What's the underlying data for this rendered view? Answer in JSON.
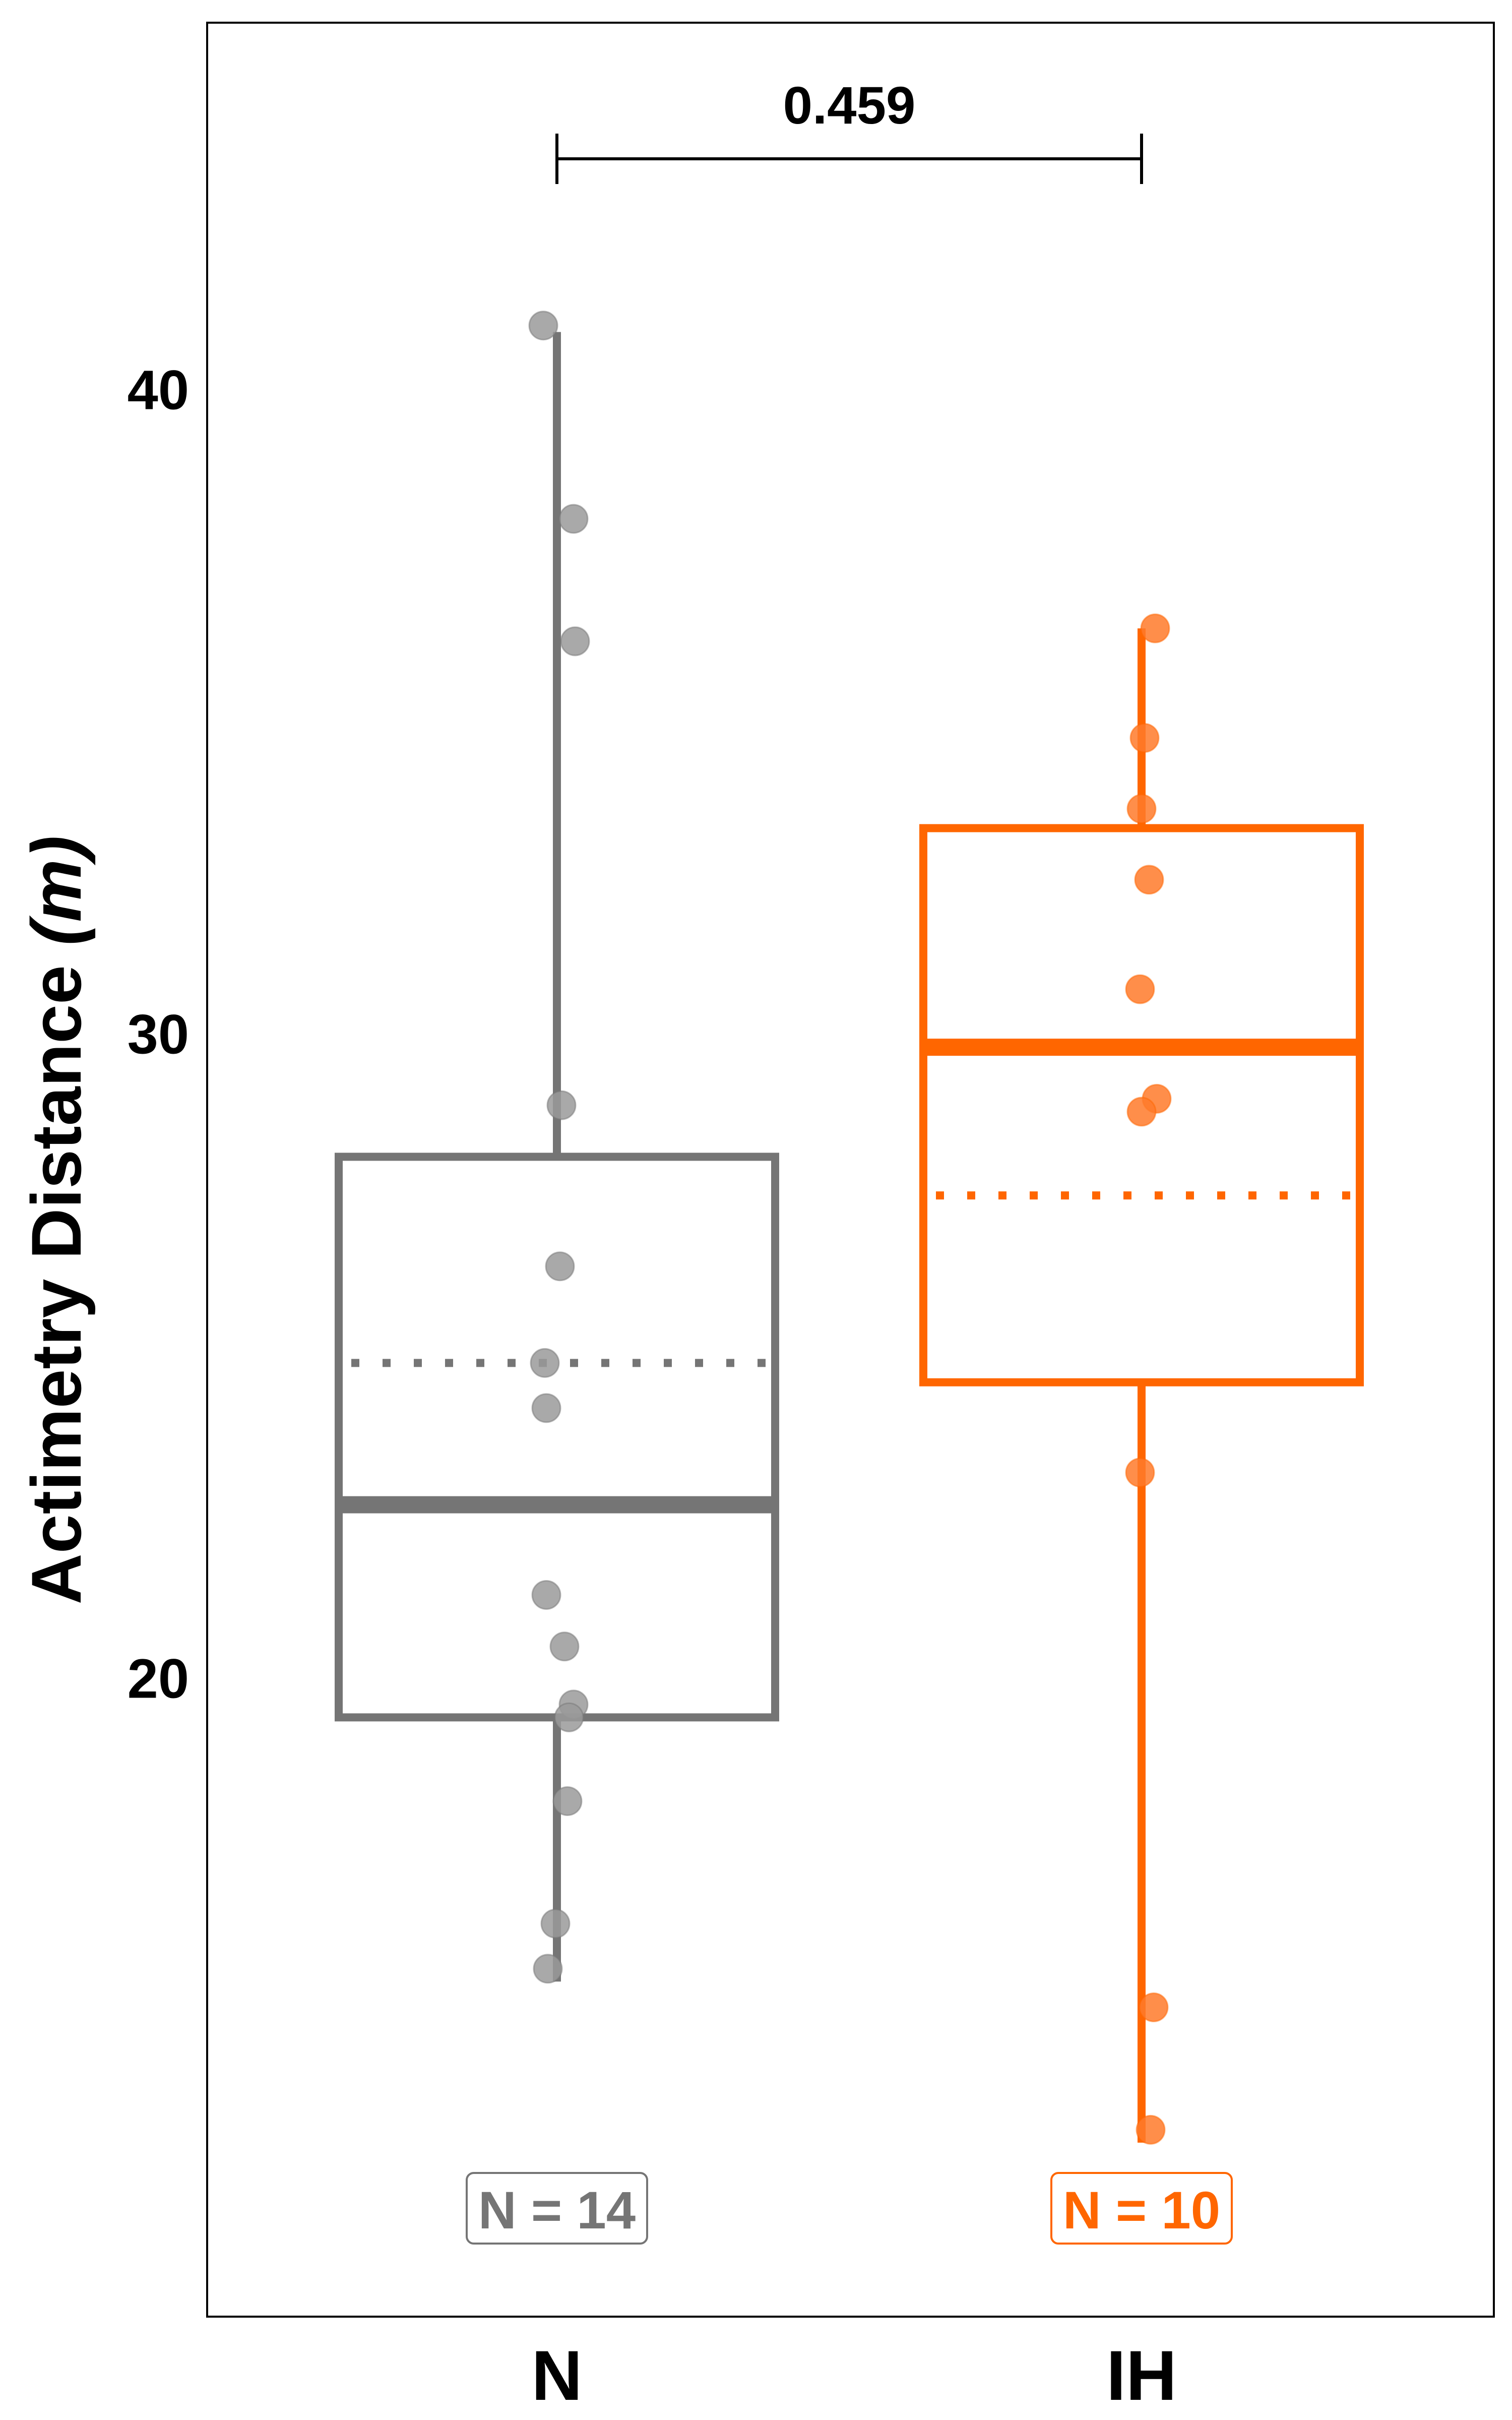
{
  "chart_data": {
    "type": "box",
    "ylabel": "Actimetry Distance",
    "ylabel_unit": "(m)",
    "ylim": [
      10.1,
      45.7
    ],
    "yticks": [
      20,
      30,
      40
    ],
    "grid": false,
    "categories": [
      "N",
      "IH"
    ],
    "comparison": {
      "groups": [
        "N",
        "IH"
      ],
      "p_value": "0.459"
    },
    "groups": [
      {
        "name": "N",
        "color": "#757575",
        "point_color": "#9a9a9a",
        "n_label": "N = 14",
        "whisker_low": 15.3,
        "q1": 19.4,
        "median": 22.7,
        "mean": 24.9,
        "q3": 28.1,
        "whisker_high": 40.9,
        "points": [
          {
            "jitter": -0.09,
            "y": 41.0
          },
          {
            "jitter": 0.11,
            "y": 38.0
          },
          {
            "jitter": 0.12,
            "y": 36.1
          },
          {
            "jitter": 0.03,
            "y": 28.9
          },
          {
            "jitter": 0.02,
            "y": 26.4
          },
          {
            "jitter": -0.08,
            "y": 24.9
          },
          {
            "jitter": -0.07,
            "y": 24.2
          },
          {
            "jitter": -0.07,
            "y": 21.3
          },
          {
            "jitter": 0.05,
            "y": 20.5
          },
          {
            "jitter": 0.11,
            "y": 19.6
          },
          {
            "jitter": 0.08,
            "y": 19.4
          },
          {
            "jitter": 0.07,
            "y": 18.1
          },
          {
            "jitter": -0.01,
            "y": 16.2
          },
          {
            "jitter": -0.06,
            "y": 15.5
          }
        ]
      },
      {
        "name": "IH",
        "color": "#ff6600",
        "point_color": "#ff7a2a",
        "n_label": "N = 10",
        "whisker_low": 12.8,
        "q1": 24.6,
        "median": 29.8,
        "mean": 27.5,
        "q3": 33.2,
        "whisker_high": 36.3,
        "points": [
          {
            "jitter": 0.09,
            "y": 36.3
          },
          {
            "jitter": 0.02,
            "y": 34.6
          },
          {
            "jitter": 0.0,
            "y": 33.5
          },
          {
            "jitter": 0.05,
            "y": 32.4
          },
          {
            "jitter": -0.01,
            "y": 30.7
          },
          {
            "jitter": 0.1,
            "y": 29.0
          },
          {
            "jitter": 0.0,
            "y": 28.8
          },
          {
            "jitter": -0.01,
            "y": 23.2
          },
          {
            "jitter": 0.08,
            "y": 14.9
          },
          {
            "jitter": 0.06,
            "y": 13.0
          }
        ]
      }
    ]
  }
}
